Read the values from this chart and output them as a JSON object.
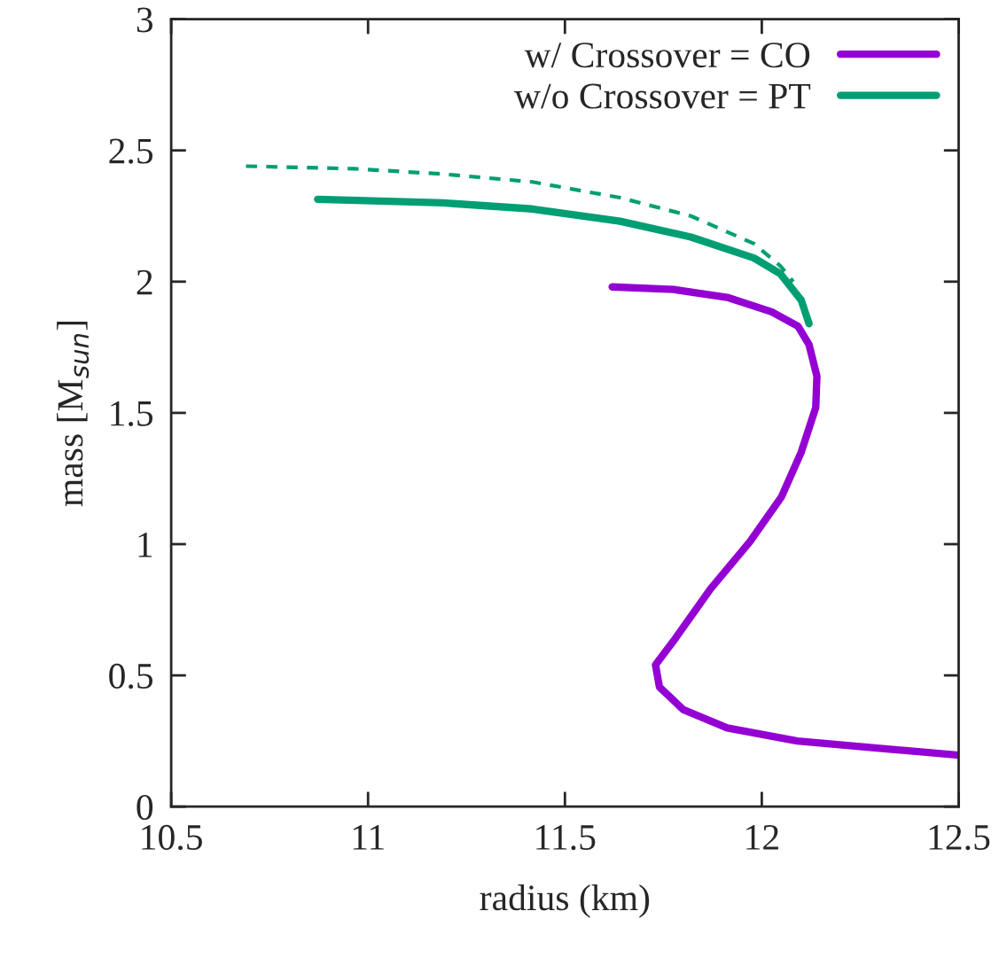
{
  "chart_data": {
    "type": "line",
    "xlabel": "radius (km)",
    "ylabel": "mass [M$_{sun}$]",
    "xlim": [
      10.5,
      12.5
    ],
    "xticks": [
      10.5,
      11,
      11.5,
      12,
      12.5
    ],
    "ylim": [
      0,
      3
    ],
    "yticks": [
      0,
      0.5,
      1,
      1.5,
      2,
      2.5,
      3
    ],
    "grid": false,
    "legend": "top right",
    "series": [
      {
        "name": "w/ Crossover = CO",
        "color": "#9400d3",
        "line_style": "solid",
        "x": [
          11.62,
          11.777,
          11.912,
          12.025,
          12.092,
          12.12,
          12.14,
          12.137,
          12.1,
          12.05,
          11.97,
          11.87,
          11.78,
          11.73,
          11.74,
          11.8,
          11.912,
          12.09,
          12.318,
          12.5
        ],
        "values": [
          1.98,
          1.97,
          1.94,
          1.885,
          1.83,
          1.76,
          1.64,
          1.52,
          1.35,
          1.18,
          1.01,
          0.83,
          0.64,
          0.54,
          0.456,
          0.37,
          0.3,
          0.25,
          0.22,
          0.196
        ]
      },
      {
        "name": "w/o Crossover = PT",
        "color": "#009e73",
        "line_style": "solid",
        "x": [
          10.872,
          11.19,
          11.417,
          11.64,
          11.82,
          11.98,
          12.047,
          12.1,
          12.12
        ],
        "values": [
          2.314,
          2.3,
          2.277,
          2.23,
          2.17,
          2.09,
          2.03,
          1.93,
          1.84
        ]
      },
      {
        "color": "#009e73",
        "line_style": "dashed",
        "x": [
          10.69,
          10.966,
          11.19,
          11.417,
          11.64,
          11.82,
          11.98,
          12.047,
          12.08
        ],
        "values": [
          2.44,
          2.43,
          2.41,
          2.38,
          2.32,
          2.25,
          2.145,
          2.06,
          2.0
        ]
      }
    ]
  }
}
